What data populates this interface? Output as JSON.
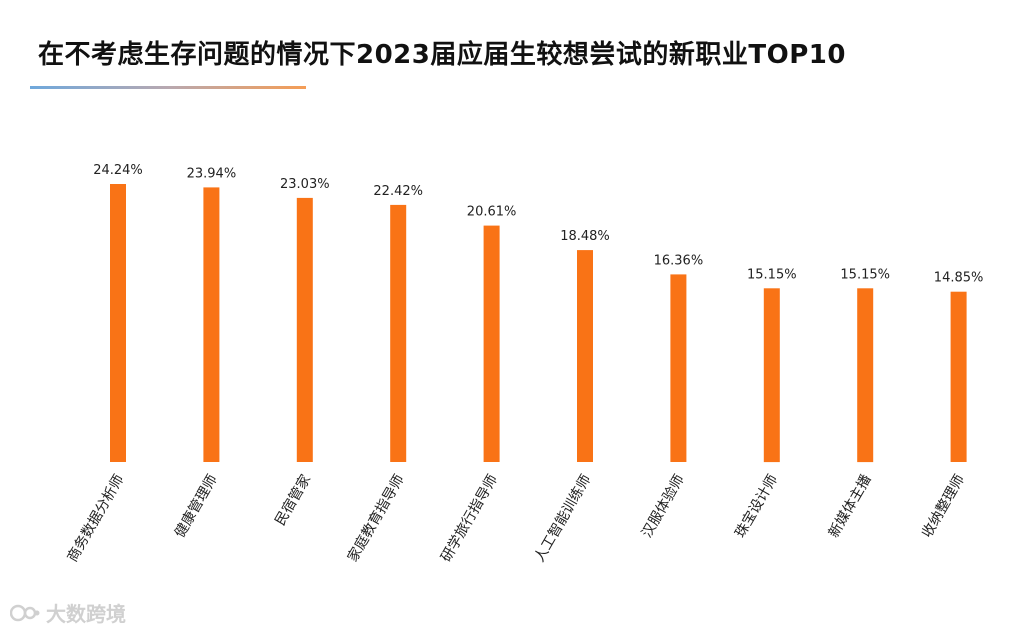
{
  "title": "在不考虑生存问题的情况下2023届应届生较想尝试的新职业TOP10",
  "colors": {
    "bar": "#f97316",
    "title": "#111111",
    "label": "#222222"
  },
  "watermark": {
    "text": "大数跨境",
    "icon": "logo-icon"
  },
  "chart_data": {
    "type": "bar",
    "title": "在不考虑生存问题的情况下2023届应届生较想尝试的新职业TOP10",
    "categories": [
      "商务数据分析师",
      "健康管理师",
      "民宿管家",
      "家庭教育指导师",
      "研学旅行指导师",
      "人工智能训练师",
      "汉服体验师",
      "珠宝设计师",
      "新媒体主播",
      "收纳整理师"
    ],
    "values": [
      24.24,
      23.94,
      23.03,
      22.42,
      20.61,
      18.48,
      16.36,
      15.15,
      15.15,
      14.85
    ],
    "value_labels": [
      "24.24%",
      "23.94%",
      "23.03%",
      "22.42%",
      "20.61%",
      "18.48%",
      "16.36%",
      "15.15%",
      "15.15%",
      "14.85%"
    ],
    "unit": "%",
    "ylim": [
      0,
      24.24
    ],
    "grid": false,
    "legend": "none"
  }
}
